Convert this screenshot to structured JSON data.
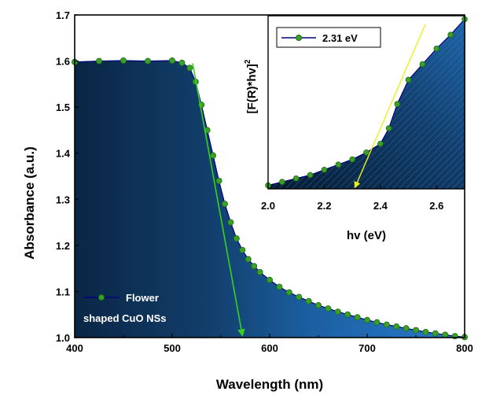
{
  "colors": {
    "fill_deep": "#0b2f52",
    "fill_mid": "#1b5fa0",
    "fill_edge": "#2a7ad0",
    "line": "#000080",
    "marker": "#3aa02a",
    "marker_edge": "#1c6a14",
    "green_arrow": "#39d11d",
    "yellow_arrow": "#e6f21a"
  },
  "chart_data": [
    {
      "type": "line",
      "title": "",
      "xlabel": "Wavelength (nm)",
      "ylabel": "Absorbance (a.u.)",
      "xlim": [
        400,
        800
      ],
      "ylim": [
        1.0,
        1.7
      ],
      "x_ticks": [
        "400",
        "500",
        "600",
        "700",
        "800"
      ],
      "y_ticks": [
        "1.0",
        "1.1",
        "1.2",
        "1.3",
        "1.4",
        "1.5",
        "1.6",
        "1.7"
      ],
      "grid": false,
      "legend": {
        "position": "bottom-left",
        "line1": "Flower",
        "line2": "shaped CuO NSs"
      },
      "series": [
        {
          "name": "Flower shaped CuO NSs",
          "x": [
            400,
            425,
            450,
            475,
            500,
            510,
            518,
            524,
            530,
            536,
            542,
            548,
            554,
            560,
            566,
            572,
            578,
            584,
            590,
            600,
            610,
            620,
            630,
            640,
            650,
            660,
            670,
            680,
            690,
            700,
            710,
            720,
            730,
            740,
            750,
            760,
            770,
            780,
            790,
            800
          ],
          "y": [
            1.598,
            1.6,
            1.601,
            1.6,
            1.601,
            1.596,
            1.585,
            1.555,
            1.505,
            1.45,
            1.395,
            1.34,
            1.29,
            1.25,
            1.215,
            1.19,
            1.17,
            1.155,
            1.142,
            1.125,
            1.11,
            1.098,
            1.088,
            1.079,
            1.07,
            1.063,
            1.056,
            1.05,
            1.044,
            1.038,
            1.033,
            1.028,
            1.024,
            1.02,
            1.016,
            1.012,
            1.009,
            1.006,
            1.003,
            1.001
          ]
        }
      ],
      "annotations": [
        {
          "type": "tangent-arrow",
          "from": [
            521,
            1.595
          ],
          "to": [
            572,
            1.005
          ]
        }
      ]
    },
    {
      "type": "line",
      "title": "",
      "xlabel": "hv (eV)",
      "ylabel": "[F(R)*hv]",
      "ylabel_superscript": "2",
      "xlim": [
        2.0,
        2.7
      ],
      "ylim": [
        0,
        1
      ],
      "x_ticks": [
        "2.0",
        "2.2",
        "2.4",
        "2.6"
      ],
      "legend": {
        "position": "top-left",
        "label": "2.31 eV"
      },
      "series": [
        {
          "name": "2.31 eV",
          "x": [
            2.0,
            2.05,
            2.1,
            2.15,
            2.2,
            2.25,
            2.3,
            2.35,
            2.4,
            2.43,
            2.46,
            2.5,
            2.55,
            2.6,
            2.65,
            2.7
          ],
          "y": [
            0.02,
            0.04,
            0.06,
            0.08,
            0.11,
            0.14,
            0.17,
            0.21,
            0.26,
            0.35,
            0.49,
            0.63,
            0.72,
            0.81,
            0.89,
            0.98
          ]
        }
      ],
      "annotations": [
        {
          "type": "tangent-arrow",
          "from": [
            2.56,
            0.95
          ],
          "to": [
            2.31,
            0.01
          ]
        }
      ]
    }
  ]
}
